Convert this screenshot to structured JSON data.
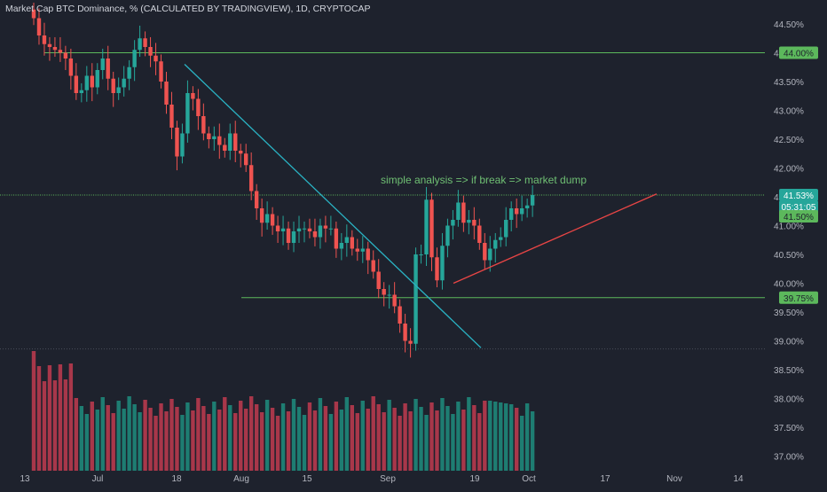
{
  "header": {
    "title": "Market Cap BTC Dominance, % (CALCULATED BY TRADINGVIEW), 1D, CRYPTOCAP"
  },
  "colors": {
    "background": "#1e222d",
    "up": "#26a69a",
    "down": "#ef5350",
    "up_volume": "#1e7d72",
    "down_volume": "#a8374a",
    "level_line": "#5cb85c",
    "trend_line": "#2ab3c4",
    "support_line": "#e84545",
    "annotation_text": "#6fbf73",
    "axis_text": "#b2b5be"
  },
  "chart_data": {
    "type": "candlestick",
    "y_axis": {
      "ticks": [
        "44.50%",
        "44.00%",
        "43.50%",
        "43.00%",
        "42.50%",
        "42.00%",
        "41.50%",
        "41.00%",
        "40.50%",
        "40.00%",
        "39.50%",
        "39.00%",
        "38.50%",
        "38.00%",
        "37.50%",
        "37.00%"
      ],
      "ylim": [
        36.85,
        44.85
      ]
    },
    "x_axis": {
      "ticks": [
        "13",
        "Jul",
        "18",
        "Aug",
        "15",
        "Sep",
        "19",
        "Oct",
        "17",
        "Nov",
        "14"
      ]
    },
    "current_price_label": "41.53%",
    "countdown_label": "05:31:05",
    "level_labels": [
      "44.00%",
      "41.50%",
      "39.75%"
    ],
    "annotation": "simple analysis => if break => market dump",
    "close_values_approx": [
      44.6,
      44.3,
      44.15,
      44.1,
      44.05,
      44.0,
      43.9,
      43.6,
      43.3,
      43.35,
      43.6,
      43.4,
      43.7,
      43.9,
      43.55,
      43.3,
      43.4,
      43.55,
      43.75,
      44.05,
      44.25,
      44.1,
      43.95,
      43.85,
      43.5,
      43.1,
      42.7,
      42.2,
      42.6,
      43.3,
      43.2,
      42.9,
      42.6,
      42.5,
      42.55,
      42.4,
      42.3,
      42.6,
      42.3,
      42.25,
      42.05,
      41.6,
      41.3,
      41.05,
      41.2,
      41.0,
      40.9,
      40.95,
      40.7,
      40.9,
      40.95,
      40.95,
      40.9,
      40.8,
      41.0,
      40.95,
      40.95,
      40.6,
      40.7,
      40.8,
      40.6,
      40.55,
      40.6,
      40.4,
      40.2,
      39.9,
      39.8,
      39.8,
      39.6,
      39.3,
      39.0,
      38.95,
      40.5,
      40.5,
      41.45,
      40.45,
      40.05,
      40.65,
      41.0,
      41.1,
      41.4,
      41.05,
      41.1,
      41.0,
      40.7,
      40.4,
      40.6,
      40.75,
      40.8,
      41.1,
      41.3,
      41.2,
      41.3,
      41.35,
      41.53
    ],
    "volume_range_approx": [
      0.3,
      1.0
    ]
  }
}
